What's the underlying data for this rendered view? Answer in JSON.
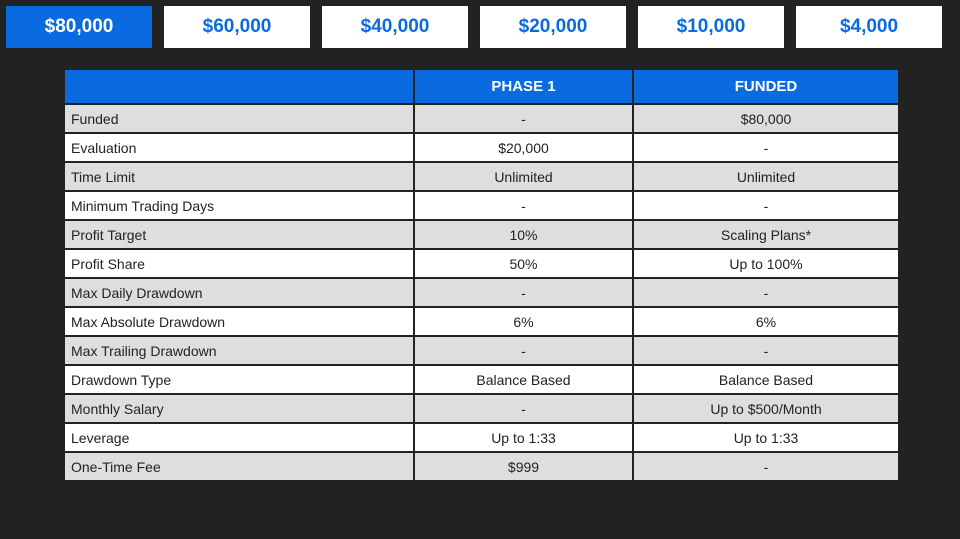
{
  "tabs": [
    {
      "label": "$80,000",
      "active": true
    },
    {
      "label": "$60,000",
      "active": false
    },
    {
      "label": "$40,000",
      "active": false
    },
    {
      "label": "$20,000",
      "active": false
    },
    {
      "label": "$10,000",
      "active": false
    },
    {
      "label": "$4,000",
      "active": false
    }
  ],
  "table": {
    "headers": [
      "",
      "PHASE 1",
      "FUNDED"
    ],
    "rows": [
      {
        "label": "Funded",
        "phase1": "-",
        "funded": "$80,000"
      },
      {
        "label": "Evaluation",
        "phase1": "$20,000",
        "funded": "-"
      },
      {
        "label": "Time Limit",
        "phase1": "Unlimited",
        "funded": "Unlimited"
      },
      {
        "label": "Minimum Trading Days",
        "phase1": "-",
        "funded": "-"
      },
      {
        "label": "Profit Target",
        "phase1": "10%",
        "funded": "Scaling Plans*"
      },
      {
        "label": "Profit Share",
        "phase1": "50%",
        "funded": "Up to 100%"
      },
      {
        "label": "Max Daily Drawdown",
        "phase1": "-",
        "funded": "-"
      },
      {
        "label": "Max Absolute Drawdown",
        "phase1": "6%",
        "funded": "6%"
      },
      {
        "label": "Max Trailing Drawdown",
        "phase1": "-",
        "funded": "-"
      },
      {
        "label": "Drawdown Type",
        "phase1": "Balance Based",
        "funded": "Balance Based"
      },
      {
        "label": "Monthly Salary",
        "phase1": "-",
        "funded": "Up to $500/Month"
      },
      {
        "label": "Leverage",
        "phase1": "Up to 1:33",
        "funded": "Up to 1:33"
      },
      {
        "label": "One-Time Fee",
        "phase1": "$999",
        "funded": "-"
      }
    ]
  },
  "colors": {
    "accent": "#0a6be0",
    "background": "#222222",
    "row_shade": "#dedede",
    "row_plain": "#ffffff"
  }
}
